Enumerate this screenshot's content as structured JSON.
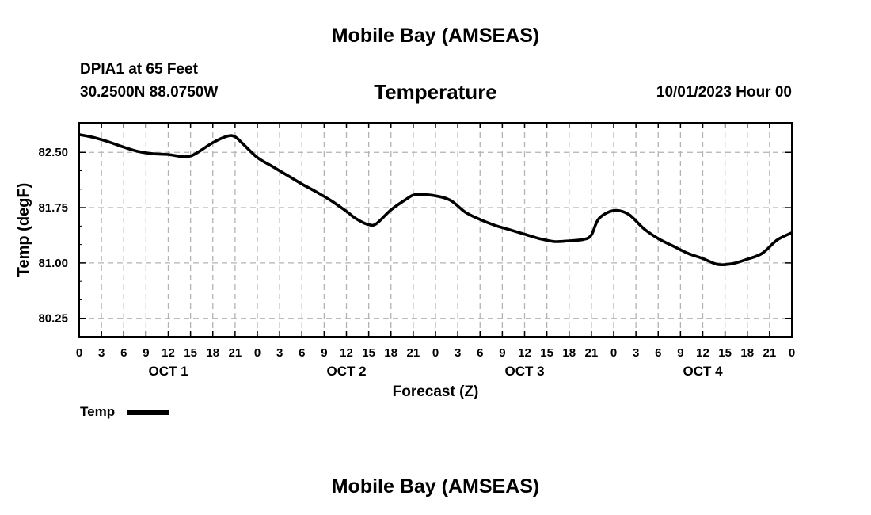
{
  "page": {
    "title": "Mobile Bay (AMSEAS)",
    "footer_title": "Mobile Bay (AMSEAS)"
  },
  "station": {
    "name": "DPIA1 at 65 Feet",
    "coords": "30.2500N  88.0750W"
  },
  "chart_data": {
    "type": "line",
    "title": "Temperature",
    "datetime": "10/01/2023 Hour 00",
    "xlabel": "Forecast (Z)",
    "ylabel": "Temp (degF)",
    "x_unit": "hours since 10/01/2023 00Z",
    "xlim": [
      0,
      96
    ],
    "ylim": [
      80.0,
      82.9
    ],
    "grid": true,
    "legend_position": "below-left",
    "x_tick_labels": [
      "0",
      "3",
      "6",
      "9",
      "12",
      "15",
      "18",
      "21",
      "0",
      "3",
      "6",
      "9",
      "12",
      "15",
      "18",
      "21",
      "0",
      "3",
      "6",
      "9",
      "12",
      "15",
      "18",
      "21",
      "0",
      "3",
      "6",
      "9",
      "12",
      "15",
      "18",
      "21",
      "0"
    ],
    "day_labels": [
      {
        "label": "OCT 1",
        "hour": 12
      },
      {
        "label": "OCT 2",
        "hour": 36
      },
      {
        "label": "OCT 3",
        "hour": 60
      },
      {
        "label": "OCT 4",
        "hour": 84
      }
    ],
    "y_ticks": [
      80.25,
      81.0,
      81.75,
      82.5
    ],
    "y_tick_labels": [
      "80.25",
      "81.00",
      "81.75",
      "82.50"
    ],
    "series": [
      {
        "name": "Temp",
        "color": "#000000",
        "x": [
          0,
          2,
          4,
          6,
          8,
          10,
          12,
          14,
          15,
          16,
          18,
          20,
          21,
          22,
          24,
          26,
          28,
          30,
          32,
          34,
          36,
          37,
          38,
          39,
          40,
          42,
          44,
          45,
          46,
          48,
          50,
          52,
          54,
          56,
          58,
          60,
          62,
          64,
          66,
          68,
          69,
          70,
          72,
          74,
          76,
          78,
          80,
          82,
          84,
          86,
          88,
          90,
          92,
          94,
          96
        ],
        "y": [
          82.74,
          82.7,
          82.64,
          82.57,
          82.51,
          82.48,
          82.47,
          82.44,
          82.45,
          82.5,
          82.63,
          82.72,
          82.71,
          82.62,
          82.43,
          82.31,
          82.19,
          82.07,
          81.96,
          81.84,
          81.7,
          81.62,
          81.56,
          81.52,
          81.53,
          81.72,
          81.86,
          81.92,
          81.93,
          81.91,
          81.85,
          81.69,
          81.59,
          81.51,
          81.45,
          81.39,
          81.33,
          81.29,
          81.3,
          81.32,
          81.38,
          81.6,
          81.71,
          81.66,
          81.47,
          81.33,
          81.23,
          81.13,
          81.06,
          80.98,
          80.99,
          81.05,
          81.13,
          81.31,
          81.41
        ]
      }
    ]
  }
}
